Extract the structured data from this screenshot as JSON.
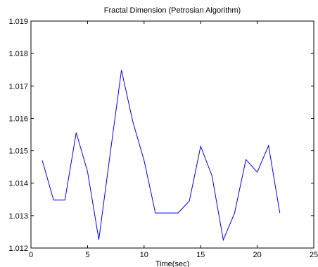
{
  "chart_data": {
    "type": "line",
    "title": "Fractal Dimension (Petrosian Algorithm)",
    "x_label": "Time(sec)",
    "x": [
      1,
      2,
      3,
      4,
      5,
      6,
      7,
      8,
      9,
      10,
      11,
      12,
      13,
      14,
      15,
      16,
      17,
      18,
      19,
      20,
      21,
      22
    ],
    "series": [
      {
        "color": "#0000ff",
        "values": [
          1.0147,
          1.01348,
          1.01348,
          1.01556,
          1.01436,
          1.01226,
          1.0149,
          1.01749,
          1.0159,
          1.0147,
          1.01308,
          1.01308,
          1.01308,
          1.01345,
          1.01514,
          1.01423,
          1.01225,
          1.01308,
          1.01473,
          1.01434,
          1.01516,
          1.01308
        ]
      }
    ],
    "xlim": [
      0,
      25
    ],
    "xticks": [
      0,
      5,
      10,
      15,
      20,
      25
    ],
    "ylim": [
      1.012,
      1.019
    ],
    "yticks": [
      1.012,
      1.013,
      1.014,
      1.015,
      1.016,
      1.017,
      1.018,
      1.019
    ]
  }
}
